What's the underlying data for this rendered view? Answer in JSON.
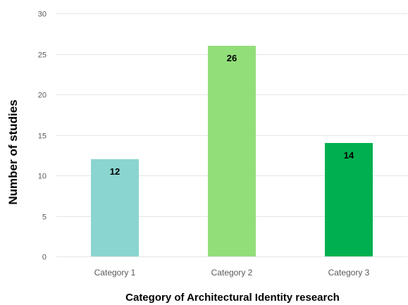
{
  "chart_data": {
    "type": "bar",
    "title": "",
    "xlabel": "Category of Architectural Identity research",
    "ylabel": "Number of studies",
    "categories": [
      "Category 1",
      "Category 2",
      "Category 3"
    ],
    "values": [
      12,
      26,
      14
    ],
    "data_labels": [
      "12",
      "26",
      "14"
    ],
    "colors": [
      "#8ad5d0",
      "#92df7a",
      "#00b050"
    ],
    "ylim": [
      0,
      30
    ],
    "yticks": [
      0,
      5,
      10,
      15,
      20,
      25,
      30
    ],
    "ytick_labels": [
      "0",
      "5",
      "10",
      "15",
      "20",
      "25",
      "30"
    ],
    "grid": true,
    "gridline_color": "#e5e5e5",
    "legend": "none"
  }
}
